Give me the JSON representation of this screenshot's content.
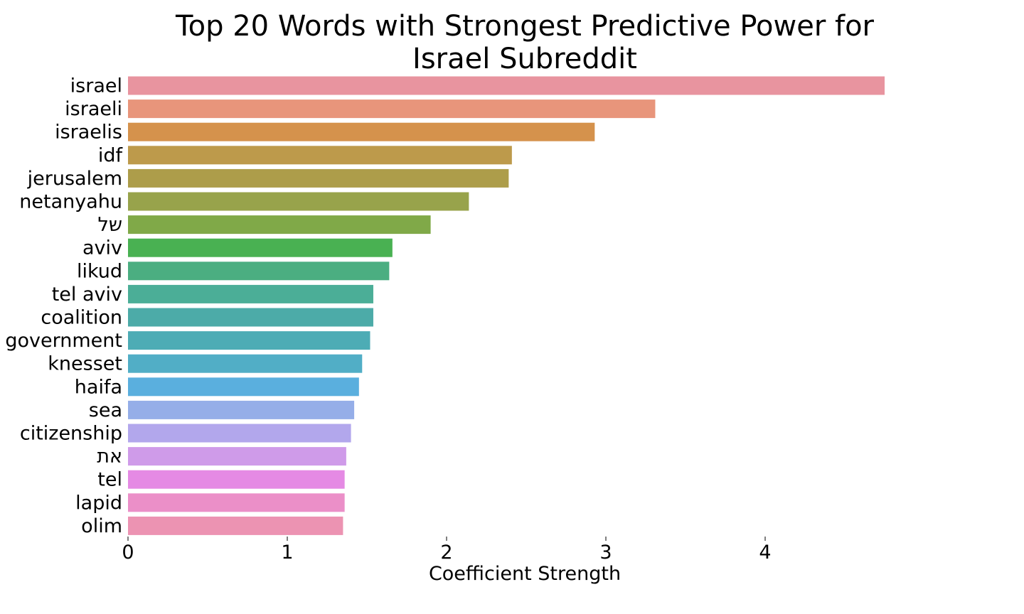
{
  "chart_data": {
    "type": "bar",
    "orientation": "horizontal",
    "title_lines": [
      "Top 20 Words with Strongest Predictive Power for",
      "Israel Subreddit"
    ],
    "xlabel": "Coefficient Strength",
    "ylabel": "",
    "xlim": [
      0,
      5
    ],
    "xticks": [
      "0",
      "1",
      "2",
      "3",
      "4"
    ],
    "grid": false,
    "categories": [
      "israel",
      "israeli",
      "israelis",
      "idf",
      "jerusalem",
      "netanyahu",
      "של",
      "aviv",
      "likud",
      "tel aviv",
      "coalition",
      "government",
      "knesset",
      "haifa",
      "sea",
      "citizenship",
      "את",
      "tel",
      "lapid",
      "olim"
    ],
    "values": [
      4.75,
      3.31,
      2.93,
      2.41,
      2.39,
      2.14,
      1.9,
      1.66,
      1.64,
      1.54,
      1.54,
      1.52,
      1.47,
      1.45,
      1.42,
      1.4,
      1.37,
      1.36,
      1.36,
      1.35
    ],
    "colors": [
      "#e8949f",
      "#e8957b",
      "#d5924c",
      "#bd9a4b",
      "#ad9d4a",
      "#98a34b",
      "#80a948",
      "#49b152",
      "#4bae81",
      "#4bae97",
      "#4caba8",
      "#4dacb5",
      "#51aec6",
      "#5aafde",
      "#95aee8",
      "#b2a7ec",
      "#cf9be9",
      "#e58ae4",
      "#eb8fc8",
      "#ec93b2"
    ]
  }
}
